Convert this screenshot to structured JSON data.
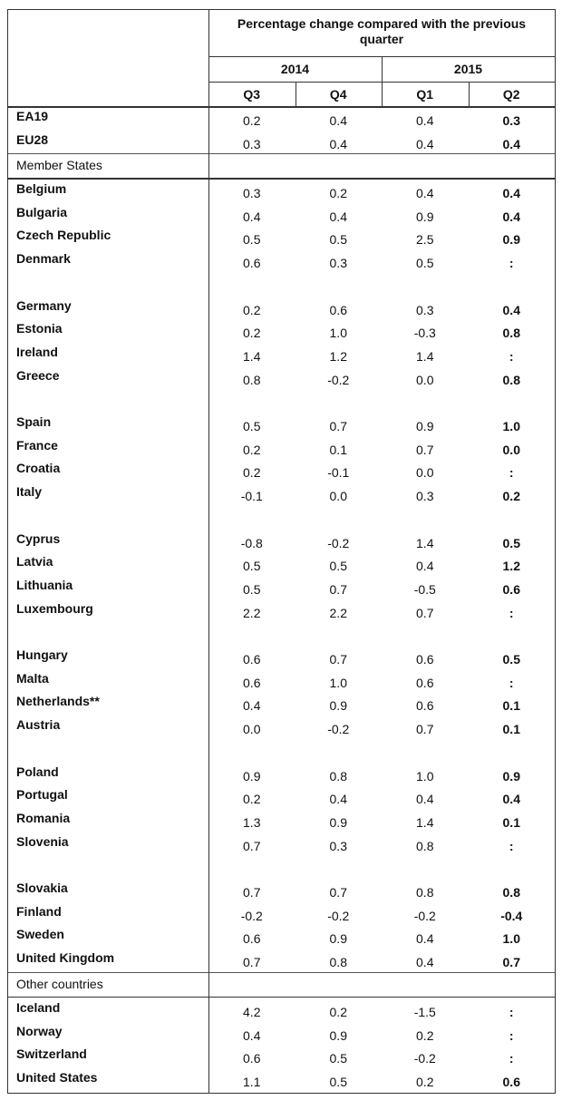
{
  "header": {
    "title": "Percentage change compared with the previous quarter",
    "years": [
      "2014",
      "2015"
    ],
    "quarters": [
      "Q3",
      "Q4",
      "Q1",
      "Q2"
    ]
  },
  "aggregates": [
    {
      "label": "EA19",
      "values": [
        "0.2",
        "0.4",
        "0.4",
        "0.3"
      ]
    },
    {
      "label": "EU28",
      "values": [
        "0.3",
        "0.4",
        "0.4",
        "0.4"
      ]
    }
  ],
  "sections": [
    {
      "title": "Member States",
      "groups": [
        [
          {
            "label": "Belgium",
            "values": [
              "0.3",
              "0.2",
              "0.4",
              "0.4"
            ]
          },
          {
            "label": "Bulgaria",
            "values": [
              "0.4",
              "0.4",
              "0.9",
              "0.4"
            ]
          },
          {
            "label": "Czech Republic",
            "values": [
              "0.5",
              "0.5",
              "2.5",
              "0.9"
            ]
          },
          {
            "label": "Denmark",
            "values": [
              "0.6",
              "0.3",
              "0.5",
              ":"
            ]
          }
        ],
        [
          {
            "label": "Germany",
            "values": [
              "0.2",
              "0.6",
              "0.3",
              "0.4"
            ]
          },
          {
            "label": "Estonia",
            "values": [
              "0.2",
              "1.0",
              "-0.3",
              "0.8"
            ]
          },
          {
            "label": "Ireland",
            "values": [
              "1.4",
              "1.2",
              "1.4",
              ":"
            ]
          },
          {
            "label": "Greece",
            "values": [
              "0.8",
              "-0.2",
              "0.0",
              "0.8"
            ]
          }
        ],
        [
          {
            "label": "Spain",
            "values": [
              "0.5",
              "0.7",
              "0.9",
              "1.0"
            ]
          },
          {
            "label": "France",
            "values": [
              "0.2",
              "0.1",
              "0.7",
              "0.0"
            ]
          },
          {
            "label": "Croatia",
            "values": [
              "0.2",
              "-0.1",
              "0.0",
              ":"
            ]
          },
          {
            "label": "Italy",
            "values": [
              "-0.1",
              "0.0",
              "0.3",
              "0.2"
            ]
          }
        ],
        [
          {
            "label": "Cyprus",
            "values": [
              "-0.8",
              "-0.2",
              "1.4",
              "0.5"
            ]
          },
          {
            "label": "Latvia",
            "values": [
              "0.5",
              "0.5",
              "0.4",
              "1.2"
            ]
          },
          {
            "label": "Lithuania",
            "values": [
              "0.5",
              "0.7",
              "-0.5",
              "0.6"
            ]
          },
          {
            "label": "Luxembourg",
            "values": [
              "2.2",
              "2.2",
              "0.7",
              ":"
            ]
          }
        ],
        [
          {
            "label": "Hungary",
            "values": [
              "0.6",
              "0.7",
              "0.6",
              "0.5"
            ]
          },
          {
            "label": "Malta",
            "values": [
              "0.6",
              "1.0",
              "0.6",
              ":"
            ]
          },
          {
            "label": "Netherlands**",
            "values": [
              "0.4",
              "0.9",
              "0.6",
              "0.1"
            ]
          },
          {
            "label": "Austria",
            "values": [
              "0.0",
              "-0.2",
              "0.7",
              "0.1"
            ]
          }
        ],
        [
          {
            "label": "Poland",
            "values": [
              "0.9",
              "0.8",
              "1.0",
              "0.9"
            ]
          },
          {
            "label": "Portugal",
            "values": [
              "0.2",
              "0.4",
              "0.4",
              "0.4"
            ]
          },
          {
            "label": "Romania",
            "values": [
              "1.3",
              "0.9",
              "1.4",
              "0.1"
            ]
          },
          {
            "label": "Slovenia",
            "values": [
              "0.7",
              "0.3",
              "0.8",
              ":"
            ]
          }
        ],
        [
          {
            "label": "Slovakia",
            "values": [
              "0.7",
              "0.7",
              "0.8",
              "0.8"
            ]
          },
          {
            "label": "Finland",
            "values": [
              "-0.2",
              "-0.2",
              "-0.2",
              "-0.4"
            ]
          },
          {
            "label": "Sweden",
            "values": [
              "0.6",
              "0.9",
              "0.4",
              "1.0"
            ]
          },
          {
            "label": "United Kingdom",
            "values": [
              "0.7",
              "0.8",
              "0.4",
              "0.7"
            ]
          }
        ]
      ]
    },
    {
      "title": "Other countries",
      "groups": [
        [
          {
            "label": "Iceland",
            "values": [
              "4.2",
              "0.2",
              "-1.5",
              ":"
            ]
          },
          {
            "label": "Norway",
            "values": [
              "0.4",
              "0.9",
              "0.2",
              ":"
            ]
          },
          {
            "label": "Switzerland",
            "values": [
              "0.6",
              "0.5",
              "-0.2",
              ":"
            ]
          },
          {
            "label": "United States",
            "values": [
              "1.1",
              "0.5",
              "0.2",
              "0.6"
            ]
          }
        ]
      ]
    }
  ]
}
